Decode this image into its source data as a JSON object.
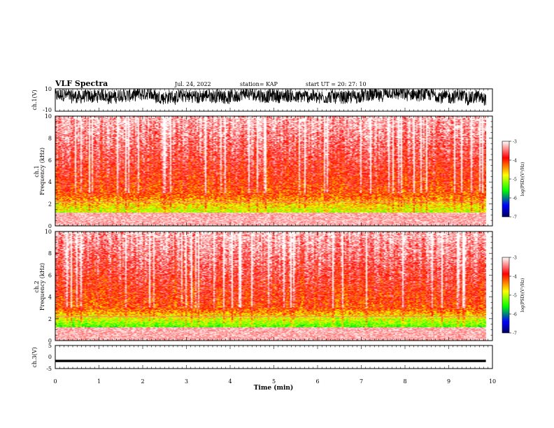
{
  "header": {
    "title": "VLF Spectra",
    "date": "Jul. 24, 2022",
    "station": "station= KAP",
    "start": "start  UT =  20: 27: 10"
  },
  "colorbar": {
    "label": "log(PSD)(V²/Hz)",
    "ticks": [
      "-3",
      "-4",
      "-5",
      "-6",
      "-7"
    ],
    "values": [
      -3,
      -4,
      -5,
      -6,
      -7
    ],
    "colors": [
      "#ffffff",
      "#ff0000",
      "#ffff00",
      "#00ff00",
      "#0000ff",
      "#000080"
    ]
  },
  "chart_data": [
    {
      "type": "line",
      "name": "ch1-waveform",
      "ylabel": "ch.1(V)",
      "ylim": [
        -10,
        10
      ],
      "ytick_labels": [
        "10",
        "-10"
      ],
      "xlim": [
        0,
        10
      ],
      "x_end": 9.85,
      "y_mean": 3.5,
      "y_range": [
        -10,
        10
      ]
    },
    {
      "type": "heatmap",
      "name": "ch1-spectrogram",
      "ylabel": "ch.1\nFrequency (kHz)",
      "ylim": [
        0,
        10
      ],
      "ytick_labels": [
        "10",
        "8",
        "6",
        "4",
        "2",
        "0"
      ],
      "xlim": [
        0,
        10
      ],
      "x_end": 9.85,
      "zlim": [
        -7,
        -3
      ]
    },
    {
      "type": "heatmap",
      "name": "ch2-spectrogram",
      "ylabel": "ch.2\nFrequency (kHz)",
      "ylim": [
        0,
        10
      ],
      "ytick_labels": [
        "10",
        "8",
        "6",
        "4",
        "2",
        "0"
      ],
      "xlim": [
        0,
        10
      ],
      "x_end": 9.85,
      "zlim": [
        -7,
        -3
      ]
    },
    {
      "type": "line",
      "name": "ch3-waveform",
      "ylabel": "ch.3(V)",
      "ylim": [
        -5,
        5
      ],
      "ytick_labels": [
        "5",
        "0",
        "-5"
      ],
      "xlim": [
        0,
        10
      ],
      "x_end": 9.85,
      "y_mean": -1.7,
      "y_range": [
        -2.2,
        -1.2
      ],
      "xlabel": "Time (min)",
      "xtick_labels": [
        "0",
        "1",
        "2",
        "3",
        "4",
        "5",
        "6",
        "7",
        "8",
        "9",
        "10"
      ]
    }
  ]
}
